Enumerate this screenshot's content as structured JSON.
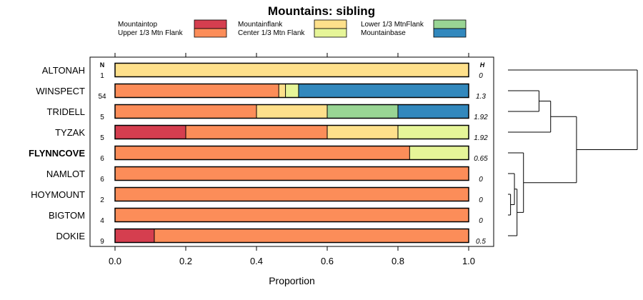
{
  "chart_data": {
    "type": "bar",
    "stacked": true,
    "orientation": "horizontal",
    "title": "Mountains: sibling",
    "xlabel": "Proportion",
    "xlim": [
      0,
      1
    ],
    "xticks": [
      "0.0",
      "0.2",
      "0.4",
      "0.6",
      "0.8",
      "1.0"
    ],
    "n_header": "N",
    "h_header": "H",
    "legend": [
      {
        "name": "Mountaintop",
        "color": "#d53e4f"
      },
      {
        "name": "Upper 1/3 Mtn Flank",
        "color": "#fc8d59"
      },
      {
        "name": "Mountainflank",
        "color": "#fee08b"
      },
      {
        "name": "Center 1/3 Mtn Flank",
        "color": "#e6f598"
      },
      {
        "name": "Lower 1/3 MtnFlank",
        "color": "#99d594"
      },
      {
        "name": "Mountainbase",
        "color": "#3288bd"
      }
    ],
    "rows": [
      {
        "label": "ALTONAH",
        "bold": false,
        "n": "1",
        "h": "0",
        "segments": [
          {
            "series": "Mountainflank",
            "value": 1.0
          }
        ]
      },
      {
        "label": "WINSPECT",
        "bold": false,
        "n": "54",
        "h": "1.3",
        "segments": [
          {
            "series": "Upper 1/3 Mtn Flank",
            "value": 0.463
          },
          {
            "series": "Mountainflank",
            "value": 0.019
          },
          {
            "series": "Center 1/3 Mtn Flank",
            "value": 0.037
          },
          {
            "series": "Mountainbase",
            "value": 0.481
          }
        ]
      },
      {
        "label": "TRIDELL",
        "bold": false,
        "n": "5",
        "h": "1.92",
        "segments": [
          {
            "series": "Upper 1/3 Mtn Flank",
            "value": 0.4
          },
          {
            "series": "Mountainflank",
            "value": 0.2
          },
          {
            "series": "Lower 1/3 MtnFlank",
            "value": 0.2
          },
          {
            "series": "Mountainbase",
            "value": 0.2
          }
        ]
      },
      {
        "label": "TYZAK",
        "bold": false,
        "n": "5",
        "h": "1.92",
        "segments": [
          {
            "series": "Mountaintop",
            "value": 0.2
          },
          {
            "series": "Upper 1/3 Mtn Flank",
            "value": 0.4
          },
          {
            "series": "Mountainflank",
            "value": 0.2
          },
          {
            "series": "Center 1/3 Mtn Flank",
            "value": 0.2
          }
        ]
      },
      {
        "label": "FLYNNCOVE",
        "bold": true,
        "n": "6",
        "h": "0.65",
        "segments": [
          {
            "series": "Upper 1/3 Mtn Flank",
            "value": 0.833
          },
          {
            "series": "Center 1/3 Mtn Flank",
            "value": 0.167
          }
        ]
      },
      {
        "label": "NAMLOT",
        "bold": false,
        "n": "6",
        "h": "0",
        "segments": [
          {
            "series": "Upper 1/3 Mtn Flank",
            "value": 1.0
          }
        ]
      },
      {
        "label": "HOYMOUNT",
        "bold": false,
        "n": "2",
        "h": "0",
        "segments": [
          {
            "series": "Upper 1/3 Mtn Flank",
            "value": 1.0
          }
        ]
      },
      {
        "label": "BIGTOM",
        "bold": false,
        "n": "4",
        "h": "0",
        "segments": [
          {
            "series": "Upper 1/3 Mtn Flank",
            "value": 1.0
          }
        ]
      },
      {
        "label": "DOKIE",
        "bold": false,
        "n": "9",
        "h": "0.5",
        "segments": [
          {
            "series": "Mountaintop",
            "value": 0.111
          },
          {
            "series": "Upper 1/3 Mtn Flank",
            "value": 0.889
          }
        ]
      }
    ],
    "dendrogram": {
      "leaves": [
        "ALTONAH",
        "WINSPECT",
        "TRIDELL",
        "TYZAK",
        "FLYNNCOVE",
        "NAMLOT",
        "HOYMOUNT",
        "BIGTOM",
        "DOKIE"
      ],
      "merges": [
        {
          "children": [
            "HOYMOUNT",
            "BIGTOM"
          ],
          "height": 0.02
        },
        {
          "children": [
            "NAMLOT",
            "m0"
          ],
          "height": 0.05
        },
        {
          "children": [
            "m1",
            "DOKIE"
          ],
          "height": 0.07
        },
        {
          "children": [
            "FLYNNCOVE",
            "m2"
          ],
          "height": 0.12
        },
        {
          "children": [
            "WINSPECT",
            "TRIDELL"
          ],
          "height": 0.24
        },
        {
          "children": [
            "m4",
            "TYZAK"
          ],
          "height": 0.33
        },
        {
          "children": [
            "m5",
            "m3"
          ],
          "height": 0.53
        },
        {
          "children": [
            "ALTONAH",
            "m6"
          ],
          "height": 1.0
        }
      ]
    }
  }
}
